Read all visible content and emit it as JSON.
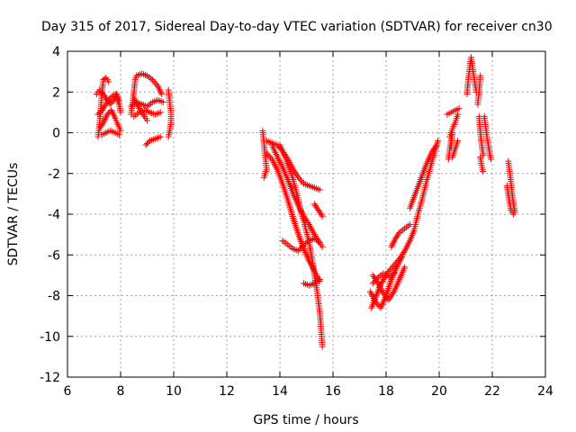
{
  "chart_data": {
    "type": "scatter",
    "title": "Day 315 of 2017, Sidereal Day-to-day VTEC variation (SDTVAR) for receiver cn30",
    "xlabel": "GPS time / hours",
    "ylabel": "SDTVAR / TECUs",
    "xlim": [
      6,
      24
    ],
    "ylim": [
      -12,
      4
    ],
    "xticks": [
      6,
      8,
      10,
      12,
      14,
      16,
      18,
      20,
      22,
      24
    ],
    "yticks": [
      -12,
      -10,
      -8,
      -6,
      -4,
      -2,
      0,
      2,
      4
    ],
    "grid": true,
    "marker": "+",
    "color": "#ff0000",
    "series": [
      {
        "name": "SDTVAR",
        "tracks": [
          [
            [
              7.15,
              -0.2
            ],
            [
              7.2,
              0.3
            ],
            [
              7.25,
              1.1
            ],
            [
              7.3,
              2.0
            ],
            [
              7.35,
              2.6
            ],
            [
              7.45,
              2.7
            ],
            [
              7.55,
              2.5
            ]
          ],
          [
            [
              7.1,
              1.9
            ],
            [
              7.2,
              2.1
            ],
            [
              7.4,
              1.8
            ],
            [
              7.6,
              1.4
            ],
            [
              7.75,
              1.6
            ],
            [
              7.85,
              1.9
            ],
            [
              7.95,
              1.6
            ]
          ],
          [
            [
              7.15,
              0.9
            ],
            [
              7.3,
              1.1
            ],
            [
              7.45,
              1.4
            ],
            [
              7.6,
              1.7
            ],
            [
              7.8,
              1.9
            ],
            [
              7.95,
              1.4
            ],
            [
              8.0,
              1.0
            ]
          ],
          [
            [
              7.2,
              0.2
            ],
            [
              7.35,
              0.5
            ],
            [
              7.5,
              0.9
            ],
            [
              7.65,
              1.1
            ],
            [
              7.8,
              0.7
            ],
            [
              7.9,
              0.4
            ],
            [
              8.0,
              0.1
            ]
          ],
          [
            [
              7.3,
              -0.1
            ],
            [
              7.45,
              0.0
            ],
            [
              7.6,
              0.1
            ],
            [
              7.8,
              0.0
            ],
            [
              7.95,
              -0.1
            ]
          ],
          [
            [
              8.4,
              0.9
            ],
            [
              8.45,
              1.5
            ],
            [
              8.5,
              2.0
            ],
            [
              8.55,
              2.6
            ],
            [
              8.6,
              2.8
            ],
            [
              8.8,
              2.9
            ],
            [
              9.0,
              2.8
            ],
            [
              9.2,
              2.6
            ],
            [
              9.4,
              2.3
            ],
            [
              9.55,
              1.9
            ]
          ],
          [
            [
              8.4,
              1.3
            ],
            [
              8.6,
              1.5
            ],
            [
              8.8,
              1.4
            ],
            [
              9.0,
              1.3
            ],
            [
              9.2,
              1.5
            ],
            [
              9.4,
              1.6
            ],
            [
              9.6,
              1.5
            ]
          ],
          [
            [
              8.5,
              0.8
            ],
            [
              8.7,
              1.0
            ],
            [
              8.9,
              1.1
            ],
            [
              9.1,
              1.0
            ],
            [
              9.3,
              0.9
            ],
            [
              9.5,
              1.0
            ]
          ],
          [
            [
              8.5,
              1.7
            ],
            [
              8.7,
              1.2
            ],
            [
              8.9,
              0.8
            ],
            [
              9.0,
              0.6
            ]
          ],
          [
            [
              8.95,
              -0.6
            ],
            [
              9.1,
              -0.4
            ],
            [
              9.3,
              -0.3
            ],
            [
              9.5,
              -0.2
            ]
          ],
          [
            [
              9.8,
              2.1
            ],
            [
              9.85,
              1.5
            ],
            [
              9.9,
              1.0
            ],
            [
              9.9,
              0.5
            ],
            [
              9.85,
              0.1
            ],
            [
              9.8,
              -0.2
            ]
          ],
          [
            [
              13.35,
              0.1
            ],
            [
              13.4,
              -0.5
            ],
            [
              13.45,
              -1.2
            ],
            [
              13.5,
              -1.8
            ],
            [
              13.4,
              -2.2
            ]
          ],
          [
            [
              13.5,
              -0.4
            ],
            [
              13.7,
              -0.5
            ],
            [
              13.9,
              -0.6
            ],
            [
              14.1,
              -0.9
            ],
            [
              14.3,
              -1.3
            ],
            [
              14.5,
              -1.8
            ],
            [
              14.7,
              -2.2
            ],
            [
              14.9,
              -2.5
            ],
            [
              15.1,
              -2.6
            ],
            [
              15.3,
              -2.7
            ],
            [
              15.5,
              -2.8
            ]
          ],
          [
            [
              13.7,
              -0.6
            ],
            [
              13.8,
              -0.9
            ],
            [
              13.95,
              -1.3
            ],
            [
              14.1,
              -1.7
            ],
            [
              14.3,
              -2.3
            ],
            [
              14.5,
              -3.0
            ],
            [
              14.7,
              -3.6
            ],
            [
              14.9,
              -4.1
            ],
            [
              15.1,
              -4.5
            ],
            [
              15.3,
              -5.0
            ],
            [
              15.5,
              -5.4
            ],
            [
              15.6,
              -5.6
            ]
          ],
          [
            [
              13.5,
              -1.0
            ],
            [
              13.7,
              -1.3
            ],
            [
              13.9,
              -1.8
            ],
            [
              14.1,
              -2.5
            ],
            [
              14.3,
              -3.3
            ],
            [
              14.5,
              -4.2
            ],
            [
              14.7,
              -5.0
            ],
            [
              14.9,
              -5.7
            ],
            [
              15.1,
              -6.3
            ],
            [
              15.3,
              -6.8
            ],
            [
              15.5,
              -7.3
            ]
          ],
          [
            [
              14.0,
              -0.6
            ],
            [
              14.1,
              -0.9
            ],
            [
              14.2,
              -1.2
            ],
            [
              14.3,
              -1.6
            ],
            [
              14.4,
              -1.9
            ],
            [
              14.5,
              -2.3
            ],
            [
              14.6,
              -2.8
            ],
            [
              14.7,
              -3.3
            ],
            [
              14.8,
              -3.9
            ],
            [
              14.95,
              -4.6
            ],
            [
              15.1,
              -5.4
            ],
            [
              15.25,
              -6.5
            ],
            [
              15.4,
              -7.8
            ],
            [
              15.5,
              -8.8
            ],
            [
              15.55,
              -9.6
            ],
            [
              15.6,
              -10.5
            ]
          ],
          [
            [
              14.1,
              -5.3
            ],
            [
              14.3,
              -5.5
            ],
            [
              14.5,
              -5.7
            ],
            [
              14.7,
              -5.8
            ],
            [
              14.9,
              -5.5
            ],
            [
              15.1,
              -5.3
            ],
            [
              15.3,
              -5.2
            ],
            [
              15.5,
              -5.4
            ]
          ],
          [
            [
              14.9,
              -7.4
            ],
            [
              15.1,
              -7.5
            ],
            [
              15.3,
              -7.4
            ],
            [
              15.5,
              -7.2
            ]
          ],
          [
            [
              15.3,
              -3.5
            ],
            [
              15.45,
              -3.8
            ],
            [
              15.6,
              -4.1
            ]
          ],
          [
            [
              17.45,
              -8.6
            ],
            [
              17.6,
              -8.1
            ],
            [
              17.75,
              -7.6
            ],
            [
              17.9,
              -7.2
            ],
            [
              18.1,
              -6.8
            ],
            [
              18.3,
              -6.5
            ],
            [
              18.5,
              -6.2
            ],
            [
              18.7,
              -5.8
            ],
            [
              18.9,
              -5.3
            ],
            [
              19.05,
              -4.8
            ],
            [
              19.2,
              -4.0
            ],
            [
              19.35,
              -3.3
            ],
            [
              19.5,
              -2.5
            ],
            [
              19.65,
              -1.8
            ],
            [
              19.8,
              -1.1
            ],
            [
              19.95,
              -0.4
            ]
          ],
          [
            [
              17.5,
              -7.0
            ],
            [
              17.7,
              -7.4
            ],
            [
              17.9,
              -7.9
            ],
            [
              18.1,
              -8.2
            ],
            [
              18.3,
              -7.8
            ],
            [
              18.5,
              -7.2
            ],
            [
              18.7,
              -6.6
            ]
          ],
          [
            [
              17.4,
              -7.8
            ],
            [
              17.6,
              -8.3
            ],
            [
              17.8,
              -8.6
            ],
            [
              18.0,
              -8.0
            ],
            [
              18.2,
              -7.2
            ],
            [
              18.4,
              -6.6
            ],
            [
              18.6,
              -6.1
            ]
          ],
          [
            [
              17.5,
              -7.4
            ],
            [
              17.7,
              -7.1
            ],
            [
              17.9,
              -6.9
            ],
            [
              18.1,
              -7.1
            ],
            [
              18.3,
              -6.9
            ]
          ],
          [
            [
              18.2,
              -5.6
            ],
            [
              18.35,
              -5.2
            ],
            [
              18.5,
              -4.9
            ],
            [
              18.7,
              -4.7
            ],
            [
              18.9,
              -4.5
            ]
          ],
          [
            [
              18.9,
              -3.7
            ],
            [
              19.1,
              -3.0
            ],
            [
              19.3,
              -2.3
            ],
            [
              19.5,
              -1.6
            ],
            [
              19.7,
              -1.0
            ],
            [
              19.9,
              -0.6
            ]
          ],
          [
            [
              20.35,
              -1.3
            ],
            [
              20.4,
              -0.8
            ],
            [
              20.45,
              -0.4
            ],
            [
              20.5,
              0.0
            ],
            [
              20.45,
              -0.7
            ]
          ],
          [
            [
              20.3,
              0.9
            ],
            [
              20.45,
              1.0
            ],
            [
              20.6,
              1.1
            ],
            [
              20.75,
              1.2
            ]
          ],
          [
            [
              20.4,
              -0.2
            ],
            [
              20.5,
              0.2
            ],
            [
              20.6,
              0.5
            ],
            [
              20.7,
              0.9
            ]
          ],
          [
            [
              20.5,
              -1.2
            ],
            [
              20.6,
              -0.8
            ],
            [
              20.7,
              -0.4
            ]
          ],
          [
            [
              21.05,
              1.9
            ],
            [
              21.1,
              2.7
            ],
            [
              21.15,
              3.2
            ],
            [
              21.2,
              3.7
            ],
            [
              21.25,
              3.3
            ],
            [
              21.3,
              2.8
            ],
            [
              21.35,
              2.4
            ],
            [
              21.4,
              2.0
            ]
          ],
          [
            [
              21.45,
              1.4
            ],
            [
              21.5,
              2.0
            ],
            [
              21.55,
              2.8
            ]
          ],
          [
            [
              21.5,
              0.8
            ],
            [
              21.55,
              0.0
            ],
            [
              21.6,
              -0.6
            ],
            [
              21.65,
              -1.1
            ]
          ],
          [
            [
              21.55,
              -1.2
            ],
            [
              21.6,
              -1.6
            ],
            [
              21.65,
              -1.9
            ]
          ],
          [
            [
              21.7,
              0.8
            ],
            [
              21.75,
              0.3
            ],
            [
              21.8,
              -0.2
            ],
            [
              21.85,
              -0.6
            ],
            [
              21.9,
              -1.0
            ],
            [
              21.95,
              -1.3
            ]
          ],
          [
            [
              22.6,
              -1.4
            ],
            [
              22.65,
              -1.9
            ],
            [
              22.7,
              -2.4
            ],
            [
              22.75,
              -3.0
            ],
            [
              22.8,
              -3.5
            ],
            [
              22.85,
              -3.9
            ]
          ],
          [
            [
              22.55,
              -2.6
            ],
            [
              22.6,
              -3.0
            ],
            [
              22.65,
              -3.4
            ],
            [
              22.7,
              -3.8
            ],
            [
              22.8,
              -4.0
            ]
          ]
        ]
      }
    ]
  }
}
